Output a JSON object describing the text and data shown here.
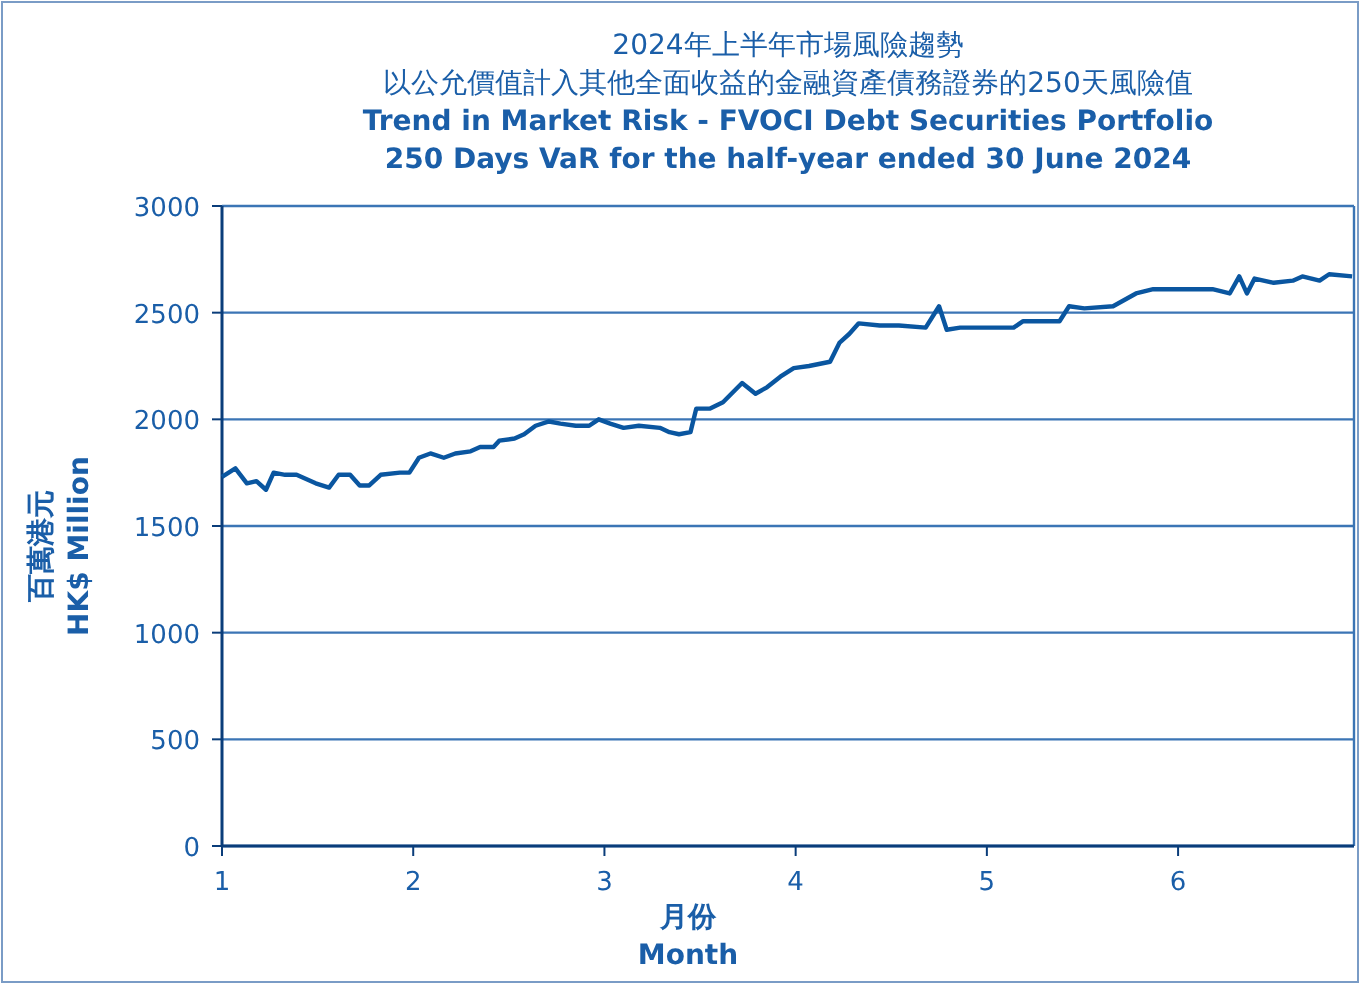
{
  "chart_data": {
    "type": "line",
    "title": "2024年上半年市場風險趨勢",
    "subtitle": "以公允價值計入其他全面收益的金融資產債務證券的250天風險值\nTrend in Market Risk - FVOCI Debt Securities Portfolio\n250 Days VaR for the half-year ended 30 June 2024",
    "xlabel": "月份\nMonth",
    "ylabel": "百萬港元\nHK$ Million",
    "xlim": [
      1,
      6.92
    ],
    "xticks": [
      1,
      2,
      3,
      4,
      5,
      6
    ],
    "ylim": [
      0,
      3000
    ],
    "yticks": [
      0,
      500,
      1000,
      1500,
      2000,
      2500,
      3000
    ],
    "grid": "y",
    "marker": "none",
    "line_style": "solid",
    "series": [
      {
        "color": "#0a56a0",
        "x": [
          1.0,
          1.07,
          1.13,
          1.18,
          1.23,
          1.27,
          1.33,
          1.39,
          1.44,
          1.49,
          1.56,
          1.61,
          1.67,
          1.72,
          1.77,
          1.83,
          1.93,
          1.98,
          2.03,
          2.09,
          2.16,
          2.22,
          2.3,
          2.35,
          2.42,
          2.45,
          2.53,
          2.58,
          2.64,
          2.71,
          2.77,
          2.85,
          2.92,
          2.97,
          3.03,
          3.1,
          3.18,
          3.29,
          3.34,
          3.39,
          3.45,
          3.48,
          3.55,
          3.62,
          3.72,
          3.79,
          3.85,
          3.92,
          3.99,
          4.07,
          4.18,
          4.23,
          4.28,
          4.33,
          4.44,
          4.54,
          4.68,
          4.75,
          4.79,
          4.86,
          4.99,
          5.14,
          5.19,
          5.38,
          5.43,
          5.51,
          5.66,
          5.78,
          5.87,
          6.18,
          6.27,
          6.32,
          6.36,
          6.4,
          6.5,
          6.6,
          6.65,
          6.74,
          6.79,
          6.91
        ],
        "values": [
          1730,
          1770,
          1700,
          1710,
          1670,
          1750,
          1740,
          1740,
          1720,
          1700,
          1680,
          1740,
          1740,
          1690,
          1690,
          1740,
          1750,
          1750,
          1820,
          1840,
          1820,
          1840,
          1850,
          1870,
          1870,
          1900,
          1910,
          1930,
          1970,
          1990,
          1980,
          1970,
          1970,
          2000,
          1980,
          1960,
          1970,
          1960,
          1940,
          1930,
          1940,
          2050,
          2050,
          2080,
          2170,
          2120,
          2150,
          2200,
          2240,
          2250,
          2270,
          2360,
          2400,
          2450,
          2440,
          2440,
          2430,
          2530,
          2420,
          2430,
          2430,
          2430,
          2460,
          2460,
          2530,
          2520,
          2530,
          2590,
          2610,
          2610,
          2590,
          2670,
          2590,
          2660,
          2640,
          2650,
          2670,
          2650,
          2680,
          2670
        ]
      }
    ]
  }
}
